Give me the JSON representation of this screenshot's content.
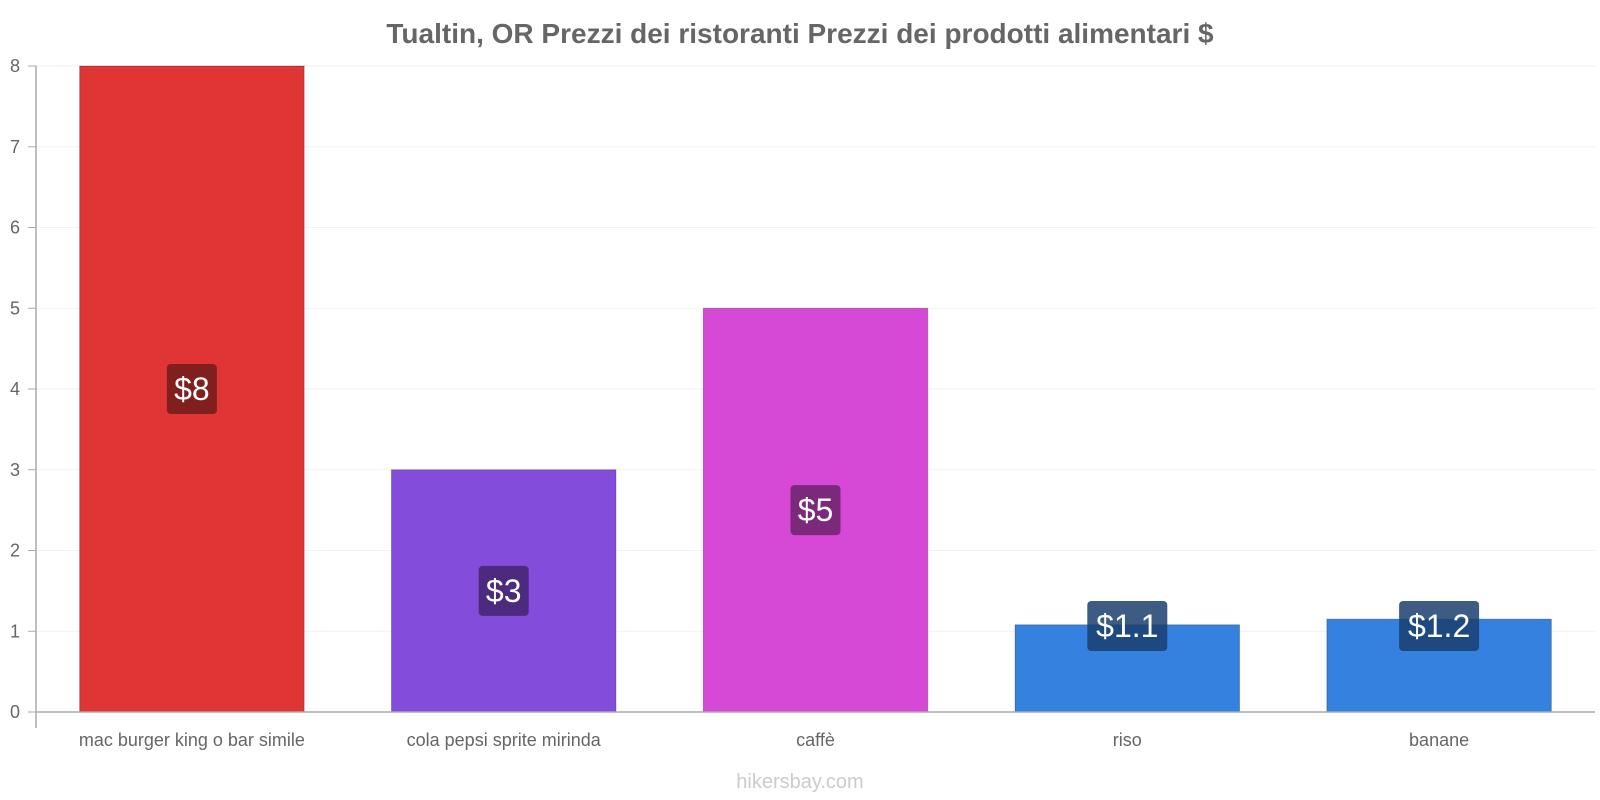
{
  "chart_data": {
    "type": "bar",
    "title": "Tualtin,  OR Prezzi dei ristoranti Prezzi dei prodotti alimentari $",
    "categories": [
      "mac burger king o bar simile",
      "cola pepsi sprite mirinda",
      "caffè",
      "riso",
      "banane"
    ],
    "values": [
      8,
      3,
      5,
      1.08,
      1.15
    ],
    "data_labels": [
      "$8",
      "$3",
      "$5",
      "$1.1",
      "$1.2"
    ],
    "colors": [
      "#e03535",
      "#844cdb",
      "#d648d6",
      "#3581e0",
      "#3581e0"
    ],
    "label_bg_colors": [
      "#701a1a",
      "#42266e",
      "#6b246b",
      "#1a406f",
      "#1a406f"
    ],
    "yticks": [
      0,
      1,
      2,
      3,
      4,
      5,
      6,
      7,
      8
    ],
    "ylim": [
      0,
      8
    ],
    "xlabel": "",
    "ylabel": "",
    "grid": true
  },
  "footer": {
    "credit": "hikersbay.com"
  }
}
